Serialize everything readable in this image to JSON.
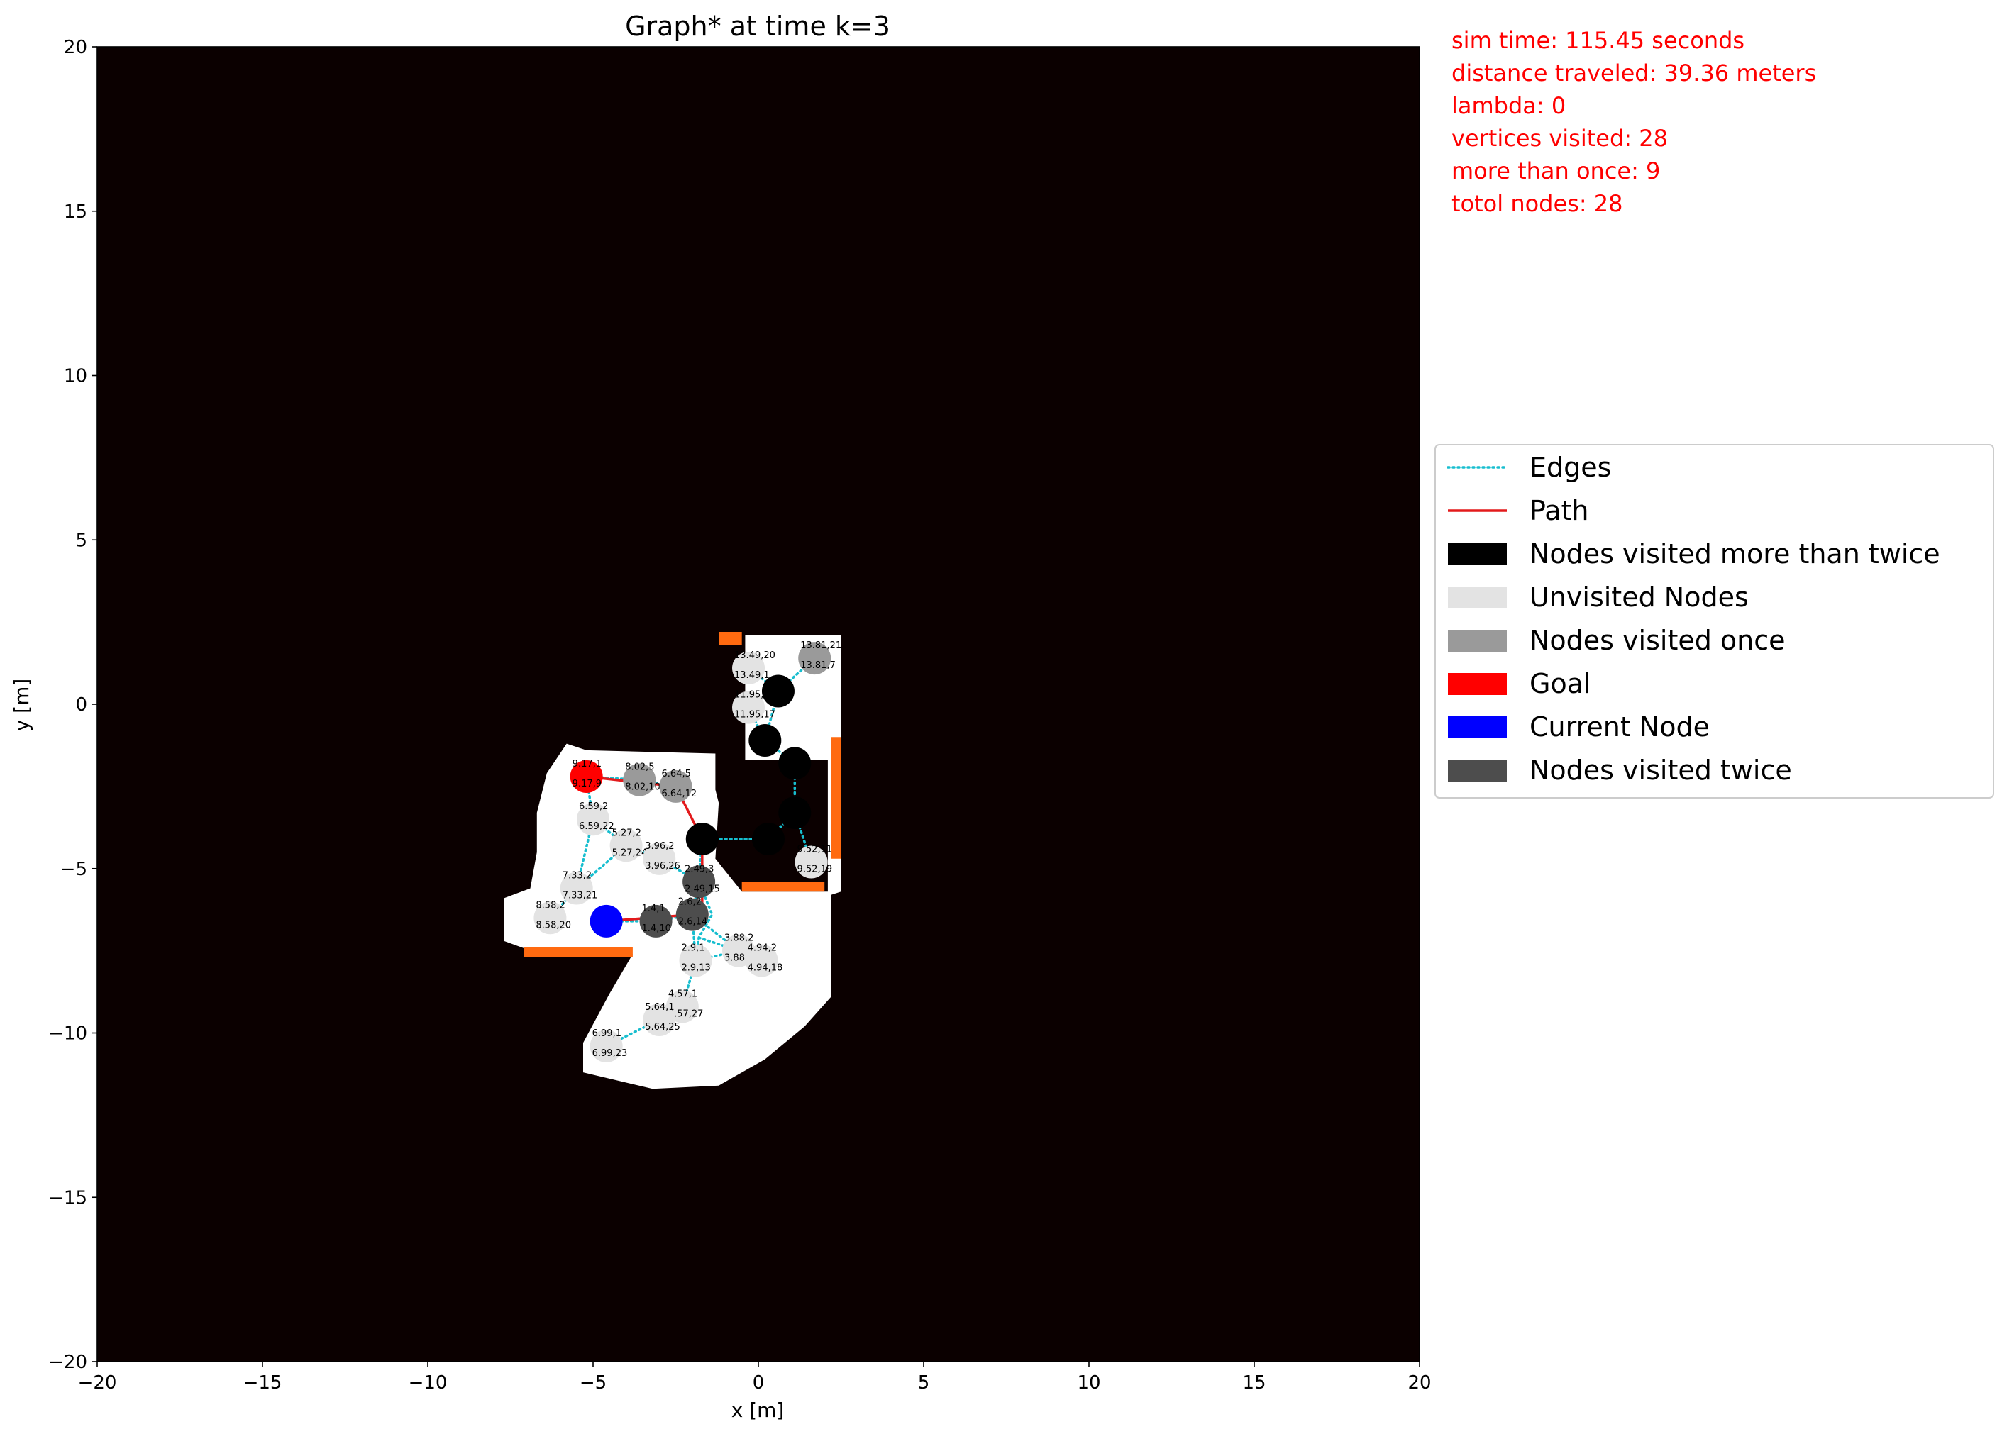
{
  "chart_data": {
    "type": "scatter",
    "title": "Graph* at time k=3",
    "xlabel": "x [m]",
    "ylabel": "y [m]",
    "xlim": [
      -20,
      20
    ],
    "ylim": [
      -20,
      20
    ],
    "xticks": [
      -20,
      -15,
      -10,
      -5,
      0,
      5,
      10,
      15,
      20
    ],
    "yticks": [
      -20,
      -15,
      -10,
      -5,
      0,
      5,
      10,
      15,
      20
    ],
    "xtick_labels": [
      "−20",
      "−15",
      "−10",
      "−5",
      "0",
      "5",
      "10",
      "15",
      "20"
    ],
    "ytick_labels": [
      "−20",
      "−15",
      "−10",
      "−5",
      "0",
      "5",
      "10",
      "15",
      "20"
    ],
    "grid": false,
    "legend_position": "right",
    "colors": {
      "background": "#0b0000",
      "free_space": "#ffffff",
      "obstacle": "#ff6a10",
      "edges": "#17becf",
      "path": "#e31a1c",
      "visited_more_than_twice": "#000000",
      "unvisited": "#e3e3e3",
      "visited_once": "#9a9a9a",
      "goal": "#ff0000",
      "current": "#0000ff",
      "visited_twice": "#4d4d4d"
    },
    "info": [
      "sim time: 115.45 seconds",
      "distance traveled: 39.36 meters",
      "lambda: 0",
      "vertices visited: 28",
      "more than once: 9",
      "totol nodes: 28"
    ],
    "legend": [
      {
        "label": "Edges",
        "kind": "dotted",
        "color": "#17becf"
      },
      {
        "label": "Path",
        "kind": "line",
        "color": "#e31a1c"
      },
      {
        "label": "Nodes visited more than twice",
        "kind": "patch",
        "color": "#000000"
      },
      {
        "label": "Unvisited Nodes",
        "kind": "patch",
        "color": "#e3e3e3"
      },
      {
        "label": "Nodes visited once",
        "kind": "patch",
        "color": "#9a9a9a"
      },
      {
        "label": "Goal",
        "kind": "patch",
        "color": "#ff0000"
      },
      {
        "label": "Current Node",
        "kind": "patch",
        "color": "#0000ff"
      },
      {
        "label": "Nodes visited twice",
        "kind": "patch",
        "color": "#4d4d4d"
      }
    ],
    "free_region": [
      [
        -0.4,
        2.1
      ],
      [
        2.5,
        2.1
      ],
      [
        2.5,
        -5.7
      ],
      [
        2.2,
        -5.8
      ],
      [
        2.2,
        -8.9
      ],
      [
        1.4,
        -9.8
      ],
      [
        0.2,
        -10.8
      ],
      [
        -1.2,
        -11.6
      ],
      [
        -3.2,
        -11.7
      ],
      [
        -5.3,
        -11.2
      ],
      [
        -5.3,
        -10.3
      ],
      [
        -4.5,
        -8.8
      ],
      [
        -3.8,
        -7.6
      ],
      [
        -6.6,
        -7.6
      ],
      [
        -7.7,
        -7.2
      ],
      [
        -7.7,
        -5.9
      ],
      [
        -6.9,
        -5.6
      ],
      [
        -6.7,
        -4.5
      ],
      [
        -6.7,
        -3.3
      ],
      [
        -6.4,
        -2.1
      ],
      [
        -5.8,
        -1.2
      ],
      [
        -5.2,
        -1.4
      ],
      [
        -1.3,
        -1.5
      ],
      [
        -1.3,
        -2.6
      ],
      [
        -1.2,
        -3.0
      ],
      [
        -1.3,
        -4.7
      ],
      [
        -0.5,
        -5.7
      ],
      [
        2.1,
        -5.7
      ],
      [
        2.1,
        -1.7
      ],
      [
        -0.4,
        -1.7
      ]
    ],
    "obstacles": [
      [
        [
          -1.2,
          2.2
        ],
        [
          -0.5,
          2.2
        ],
        [
          -0.5,
          1.8
        ],
        [
          -1.2,
          1.8
        ]
      ],
      [
        [
          2.2,
          -1.0
        ],
        [
          2.5,
          -1.0
        ],
        [
          2.5,
          -4.7
        ],
        [
          2.2,
          -4.7
        ]
      ],
      [
        [
          -0.5,
          -5.4
        ],
        [
          2.0,
          -5.4
        ],
        [
          2.0,
          -5.7
        ],
        [
          -0.5,
          -5.7
        ]
      ],
      [
        [
          -7.1,
          -7.4
        ],
        [
          -3.8,
          -7.4
        ],
        [
          -3.8,
          -7.7
        ],
        [
          -7.1,
          -7.7
        ]
      ]
    ],
    "edges": [
      [
        [
          -5.2,
          -2.2
        ],
        [
          -3.6,
          -2.3
        ],
        [
          -2.5,
          -2.5
        ]
      ],
      [
        [
          -5.2,
          -2.2
        ],
        [
          -5.0,
          -3.5
        ],
        [
          -5.5,
          -5.6
        ],
        [
          -6.3,
          -6.5
        ]
      ],
      [
        [
          -5.5,
          -5.6
        ],
        [
          -4.0,
          -4.3
        ],
        [
          -3.0,
          -4.7
        ],
        [
          -1.8,
          -5.4
        ],
        [
          -1.4,
          -6.4
        ],
        [
          -1.8,
          -7.1
        ],
        [
          -1.9,
          -7.8
        ]
      ],
      [
        [
          -5.0,
          -3.5
        ],
        [
          -4.0,
          -4.3
        ]
      ],
      [
        [
          -4.6,
          -6.6
        ],
        [
          -3.1,
          -6.6
        ],
        [
          -2.0,
          -6.4
        ],
        [
          -1.9,
          -7.8
        ],
        [
          -2.3,
          -9.2
        ],
        [
          -3.0,
          -9.6
        ],
        [
          -4.6,
          -10.4
        ]
      ],
      [
        [
          -2.0,
          -6.4
        ],
        [
          -1.8,
          -5.4
        ],
        [
          -1.7,
          -4.1
        ],
        [
          0.3,
          -4.1
        ],
        [
          1.1,
          -3.3
        ],
        [
          1.1,
          -1.8
        ],
        [
          0.2,
          -1.1
        ],
        [
          0.6,
          0.4
        ],
        [
          1.7,
          1.4
        ]
      ],
      [
        [
          0.6,
          0.4
        ],
        [
          -0.3,
          1.1
        ]
      ],
      [
        [
          -0.3,
          -0.1
        ],
        [
          0.2,
          -1.1
        ]
      ],
      [
        [
          -1.8,
          -7.1
        ],
        [
          -0.6,
          -7.5
        ],
        [
          0.1,
          -7.8
        ]
      ],
      [
        [
          -1.9,
          -7.8
        ],
        [
          -0.6,
          -7.5
        ]
      ],
      [
        [
          -2.0,
          -6.4
        ],
        [
          -0.6,
          -7.5
        ]
      ],
      [
        [
          1.1,
          -3.3
        ],
        [
          1.6,
          -4.8
        ]
      ]
    ],
    "path": [
      [
        -4.6,
        -6.6
      ],
      [
        -2.0,
        -6.4
      ],
      [
        -1.7,
        -6.2
      ],
      [
        -1.7,
        -4.1
      ],
      [
        -2.5,
        -2.5
      ],
      [
        -5.2,
        -2.2
      ]
    ],
    "nodes": [
      {
        "x": -5.2,
        "y": -2.2,
        "status": "goal",
        "labels": [
          "9.17,1",
          "9.17,9"
        ]
      },
      {
        "x": -4.6,
        "y": -6.6,
        "status": "current",
        "labels": [
          "",
          ""
        ]
      },
      {
        "x": -3.6,
        "y": -2.3,
        "status": "once",
        "labels": [
          "8.02,5",
          "8.02,10"
        ]
      },
      {
        "x": -2.5,
        "y": -2.5,
        "status": "once",
        "labels": [
          "6.64,5",
          "6.64,12"
        ]
      },
      {
        "x": -5.0,
        "y": -3.5,
        "status": "unvisited",
        "labels": [
          "6.59,2",
          "6.59,22"
        ]
      },
      {
        "x": -4.0,
        "y": -4.3,
        "status": "unvisited",
        "labels": [
          "5.27,2",
          "5.27,24"
        ]
      },
      {
        "x": -3.0,
        "y": -4.7,
        "status": "unvisited",
        "labels": [
          "3.96,2",
          "3.96,26"
        ]
      },
      {
        "x": -5.5,
        "y": -5.6,
        "status": "unvisited",
        "labels": [
          "7.33,2",
          "7.33,21"
        ]
      },
      {
        "x": -6.3,
        "y": -6.5,
        "status": "unvisited",
        "labels": [
          "8.58,2",
          "8.58,20"
        ]
      },
      {
        "x": -1.7,
        "y": -4.1,
        "status": "more",
        "labels": [
          "",
          ""
        ]
      },
      {
        "x": -1.8,
        "y": -5.4,
        "status": "twice",
        "labels": [
          "2.49,3",
          "2.49,15"
        ]
      },
      {
        "x": -3.1,
        "y": -6.6,
        "status": "twice",
        "labels": [
          "1.4,1",
          "1.4,10"
        ]
      },
      {
        "x": -2.0,
        "y": -6.4,
        "status": "twice",
        "labels": [
          "2.6,2",
          "2.6,14"
        ]
      },
      {
        "x": -1.9,
        "y": -7.8,
        "status": "unvisited",
        "labels": [
          "2.9,1",
          "2.9,13"
        ]
      },
      {
        "x": -0.6,
        "y": -7.5,
        "status": "unvisited",
        "labels": [
          "3.88,2",
          "3.88,16"
        ]
      },
      {
        "x": 0.1,
        "y": -7.8,
        "status": "unvisited",
        "labels": [
          "4.94,2",
          "4.94,18"
        ]
      },
      {
        "x": -2.3,
        "y": -9.2,
        "status": "unvisited",
        "labels": [
          "4.57,1",
          "4.57,27"
        ]
      },
      {
        "x": -3.0,
        "y": -9.6,
        "status": "unvisited",
        "labels": [
          "5.64,1",
          "5.64,25"
        ]
      },
      {
        "x": -4.6,
        "y": -10.4,
        "status": "unvisited",
        "labels": [
          "6.99,1",
          "6.99,23"
        ]
      },
      {
        "x": 0.3,
        "y": -4.1,
        "status": "more",
        "labels": [
          "",
          ""
        ]
      },
      {
        "x": 1.1,
        "y": -3.3,
        "status": "more",
        "labels": [
          "",
          ""
        ]
      },
      {
        "x": 1.6,
        "y": -4.8,
        "status": "unvisited",
        "labels": [
          "9.52,11",
          "9.52,19"
        ]
      },
      {
        "x": 1.1,
        "y": -1.8,
        "status": "more",
        "labels": [
          "",
          ""
        ]
      },
      {
        "x": 0.2,
        "y": -1.1,
        "status": "more",
        "labels": [
          "",
          ""
        ]
      },
      {
        "x": 0.6,
        "y": 0.4,
        "status": "more",
        "labels": [
          "",
          ""
        ]
      },
      {
        "x": -0.3,
        "y": 1.1,
        "status": "unvisited",
        "labels": [
          "13.49,20",
          "13.49,1"
        ]
      },
      {
        "x": 1.7,
        "y": 1.4,
        "status": "once",
        "labels": [
          "13.81,21",
          "13.81,7"
        ]
      },
      {
        "x": -0.3,
        "y": -0.1,
        "status": "unvisited",
        "labels": [
          "11.95,",
          "11.95,17"
        ]
      }
    ]
  }
}
